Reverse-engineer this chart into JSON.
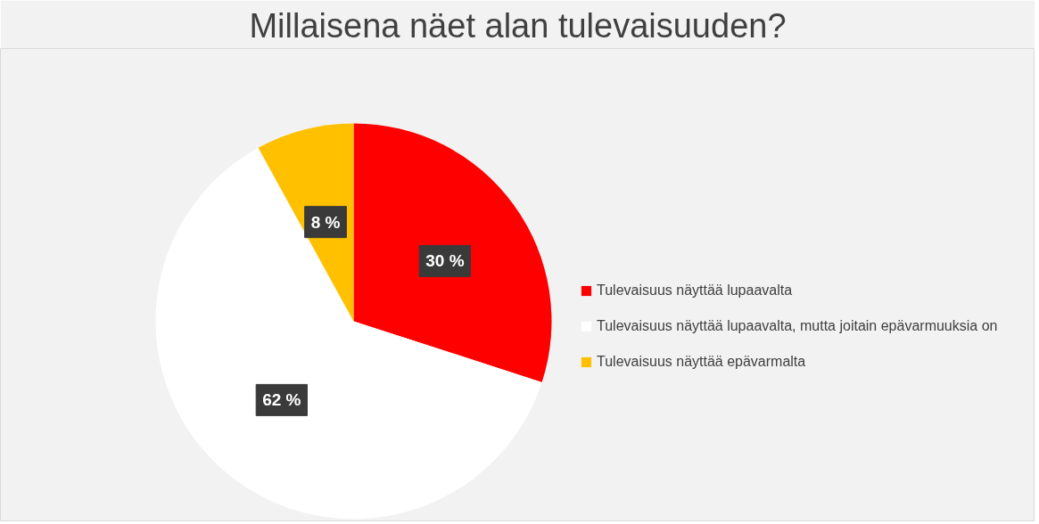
{
  "chart_data": {
    "type": "pie",
    "title": "Millaisena näet alan tulevaisuuden?",
    "categories": [
      "Tulevaisuus näyttää lupaavalta",
      "Tulevaisuus näyttää lupaavalta, mutta joitain epävarmuuksia on",
      "Tulevaisuus näyttää epävarmalta"
    ],
    "values": [
      30,
      62,
      8
    ],
    "colors": [
      "#ff0000",
      "#ffffff",
      "#ffc000"
    ],
    "value_labels": [
      "30 %",
      "62 %",
      "8 %"
    ],
    "legend": "right"
  }
}
